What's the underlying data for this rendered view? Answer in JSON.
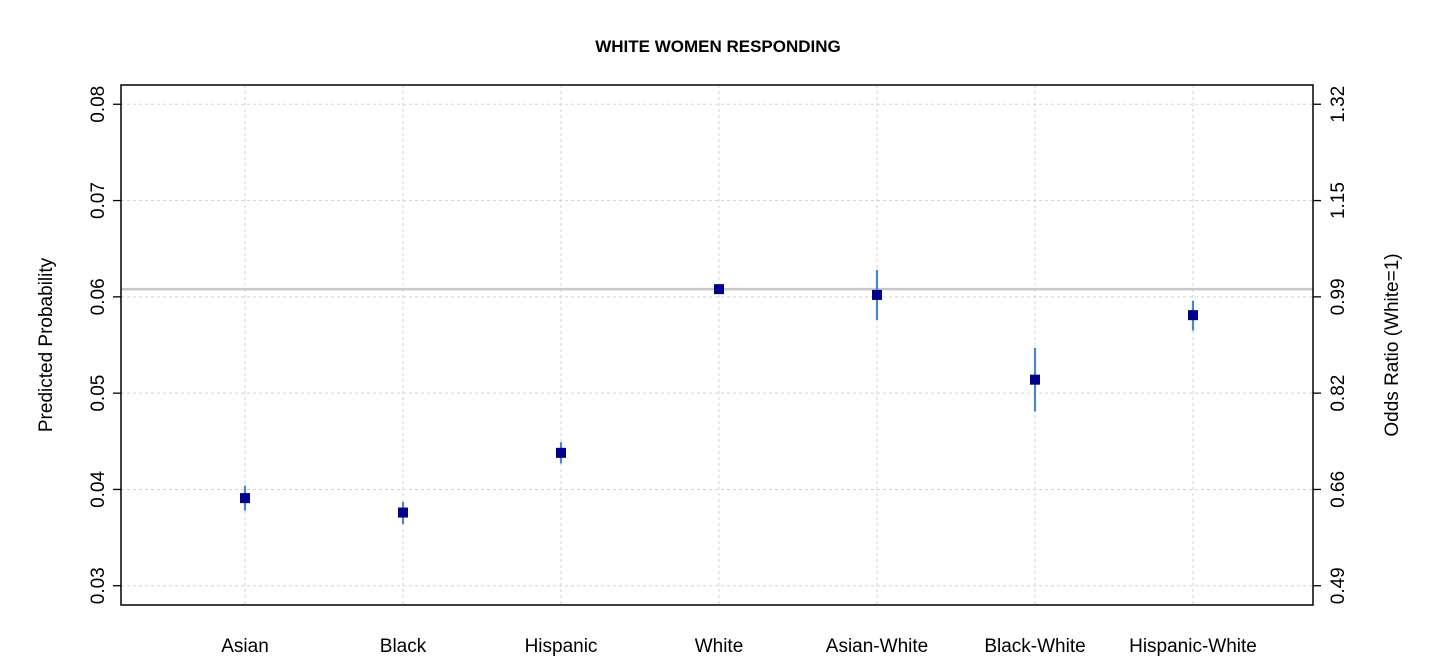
{
  "chart_data": {
    "type": "scatter",
    "title": "WHITE WOMEN RESPONDING",
    "ylabel": "Predicted Probability",
    "y2label": "Odds Ratio (White=1)",
    "categories": [
      "Asian",
      "Black",
      "Hispanic",
      "White",
      "Asian-White",
      "Black-White",
      "Hispanic-White"
    ],
    "points": [
      {
        "category": "Asian",
        "y": 0.0391,
        "lower": 0.0378,
        "upper": 0.0404
      },
      {
        "category": "Black",
        "y": 0.0376,
        "lower": 0.0364,
        "upper": 0.0387
      },
      {
        "category": "Hispanic",
        "y": 0.0438,
        "lower": 0.0427,
        "upper": 0.0449
      },
      {
        "category": "White",
        "y": 0.0608,
        "lower": 0.0606,
        "upper": 0.061
      },
      {
        "category": "Asian-White",
        "y": 0.0602,
        "lower": 0.0576,
        "upper": 0.0628
      },
      {
        "category": "Black-White",
        "y": 0.0514,
        "lower": 0.0481,
        "upper": 0.0547
      },
      {
        "category": "Hispanic-White",
        "y": 0.0581,
        "lower": 0.0565,
        "upper": 0.0596
      }
    ],
    "reference_line": 0.0608,
    "ylim": [
      0.028,
      0.082
    ],
    "yticks": [
      "0.03",
      "0.04",
      "0.05",
      "0.06",
      "0.07",
      "0.08"
    ],
    "y2ticks": [
      "0.49",
      "0.66",
      "0.82",
      "0.99",
      "1.15",
      "1.32"
    ],
    "grid": true,
    "colors": {
      "marker": "#00008b",
      "errorbar": "#4a86c8",
      "reference": "#c8c8c8",
      "grid": "#d3d3d3"
    }
  }
}
